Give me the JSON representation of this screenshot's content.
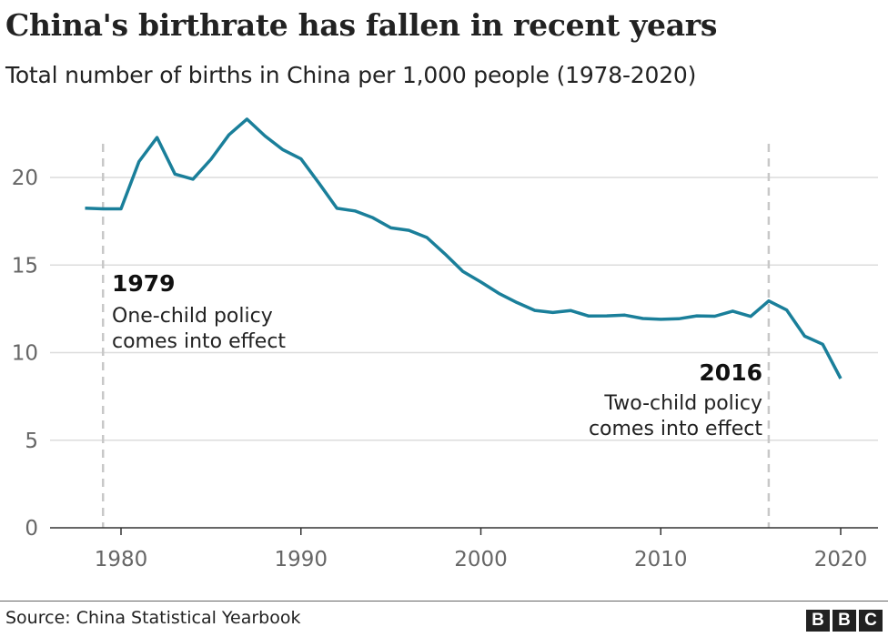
{
  "chart_data": {
    "type": "line",
    "title": "China's birthrate has fallen in recent years",
    "subtitle": "Total number of births in China per 1,000 people (1978-2020)",
    "xlabel": "",
    "ylabel": "",
    "xlim": [
      1978,
      2020
    ],
    "ylim": [
      0,
      23.5
    ],
    "x_ticks": [
      1980,
      1990,
      2000,
      2010,
      2020
    ],
    "y_ticks": [
      0,
      5,
      10,
      15,
      20
    ],
    "grid": "horizontal",
    "line_color": "#1a7f9a",
    "x": [
      1978,
      1979,
      1980,
      1981,
      1982,
      1983,
      1984,
      1985,
      1986,
      1987,
      1988,
      1989,
      1990,
      1991,
      1992,
      1993,
      1994,
      1995,
      1996,
      1997,
      1998,
      1999,
      2000,
      2001,
      2002,
      2003,
      2004,
      2005,
      2006,
      2007,
      2008,
      2009,
      2010,
      2011,
      2012,
      2013,
      2014,
      2015,
      2016,
      2017,
      2018,
      2019,
      2020
    ],
    "values": [
      18.25,
      18.21,
      18.21,
      20.91,
      22.28,
      20.19,
      19.9,
      21.04,
      22.43,
      23.33,
      22.37,
      21.58,
      21.06,
      19.68,
      18.24,
      18.09,
      17.7,
      17.12,
      16.98,
      16.57,
      15.64,
      14.64,
      14.03,
      13.38,
      12.86,
      12.41,
      12.29,
      12.4,
      12.09,
      12.1,
      12.14,
      11.95,
      11.9,
      11.93,
      12.1,
      12.08,
      12.37,
      12.07,
      12.95,
      12.43,
      10.94,
      10.48,
      8.52
    ],
    "annotations": [
      {
        "year": 1979,
        "label": "1979",
        "lines": [
          "One-child policy",
          "comes into effect"
        ]
      },
      {
        "year": 2016,
        "label": "2016",
        "lines": [
          "Two-child policy",
          "comes into effect"
        ]
      }
    ]
  },
  "footer": {
    "source": "Source: China Statistical Yearbook",
    "logo": [
      "B",
      "B",
      "C"
    ]
  }
}
